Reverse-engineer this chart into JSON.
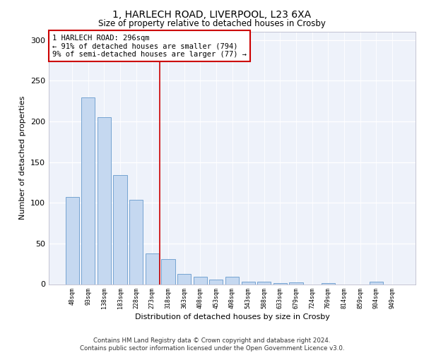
{
  "title1": "1, HARLECH ROAD, LIVERPOOL, L23 6XA",
  "title2": "Size of property relative to detached houses in Crosby",
  "xlabel": "Distribution of detached houses by size in Crosby",
  "ylabel": "Number of detached properties",
  "bar_labels": [
    "48sqm",
    "93sqm",
    "138sqm",
    "183sqm",
    "228sqm",
    "273sqm",
    "318sqm",
    "363sqm",
    "408sqm",
    "453sqm",
    "498sqm",
    "543sqm",
    "588sqm",
    "633sqm",
    "679sqm",
    "724sqm",
    "769sqm",
    "814sqm",
    "859sqm",
    "904sqm",
    "949sqm"
  ],
  "bar_values": [
    107,
    229,
    205,
    134,
    104,
    38,
    31,
    13,
    9,
    6,
    9,
    3,
    3,
    1,
    2,
    0,
    1,
    0,
    0,
    3,
    0
  ],
  "bar_color": "#c5d8f0",
  "bar_edge_color": "#6699cc",
  "annotation_text": "1 HARLECH ROAD: 296sqm\n← 91% of detached houses are smaller (794)\n9% of semi-detached houses are larger (77) →",
  "annotation_box_color": "#ffffff",
  "annotation_box_edge": "#cc0000",
  "vline_color": "#cc0000",
  "vline_x_index": 5.48,
  "ylim": [
    0,
    310
  ],
  "yticks": [
    0,
    50,
    100,
    150,
    200,
    250,
    300
  ],
  "footer": "Contains HM Land Registry data © Crown copyright and database right 2024.\nContains public sector information licensed under the Open Government Licence v3.0.",
  "plot_bg_color": "#eef2fa"
}
